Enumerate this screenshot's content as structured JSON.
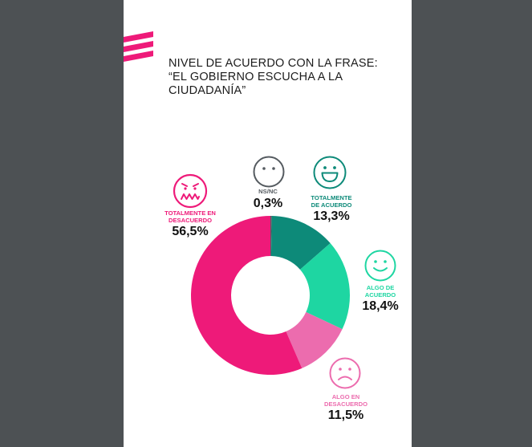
{
  "title_lines": [
    "NIVEL DE ACUERDO CON LA FRASE:",
    "“EL GOBIERNO ESCUCHA A LA",
    "CIUDADANÍA”"
  ],
  "colors": {
    "background": "#4d5154",
    "page": "#ffffff",
    "brand_magenta": "#ee1a79",
    "ns_nc": "#555b60",
    "totalmente_de_acuerdo": "#0d8a79",
    "algo_de_acuerdo": "#1ed6a2",
    "algo_en_desacuerdo": "#ec6cae",
    "totalmente_en_desacuerdo": "#ee1a79"
  },
  "chart_data": {
    "type": "pie",
    "donut": true,
    "title": "NIVEL DE ACUERDO CON LA FRASE: “EL GOBIERNO ESCUCHA A LA CIUDADANÍA”",
    "categories": [
      "NS/NC",
      "TOTALMENTE DE ACUERDO",
      "ALGO DE ACUERDO",
      "ALGO EN DESACUERDO",
      "TOTALMENTE EN DESACUERDO"
    ],
    "values": [
      0.3,
      13.3,
      18.4,
      11.5,
      56.5
    ],
    "value_labels": [
      "0,3%",
      "13,3%",
      "18,4%",
      "11,5%",
      "56,5%"
    ],
    "slice_colors": [
      "#555b60",
      "#0d8a79",
      "#1ed6a2",
      "#ec6cae",
      "#ee1a79"
    ],
    "icons": [
      "neutral-face-icon",
      "big-smile-face-icon",
      "smile-face-icon",
      "sad-face-icon",
      "angry-face-icon"
    ],
    "legend": "none"
  },
  "labels": {
    "ns_nc": {
      "category": "NS/NC",
      "value": "0,3%"
    },
    "totalmente_de_acuerdo": {
      "category_lines": [
        "TOTALMENTE",
        "DE ACUERDO"
      ],
      "value": "13,3%"
    },
    "algo_de_acuerdo": {
      "category_lines": [
        "ALGO DE",
        "ACUERDO"
      ],
      "value": "18,4%"
    },
    "algo_en_desacuerdo": {
      "category_lines": [
        "ALGO EN",
        "DESACUERDO"
      ],
      "value": "11,5%"
    },
    "totalmente_en_desacuerdo": {
      "category_lines": [
        "TOTALMENTE EN",
        "DESACUERDO"
      ],
      "value": "56,5%"
    }
  }
}
